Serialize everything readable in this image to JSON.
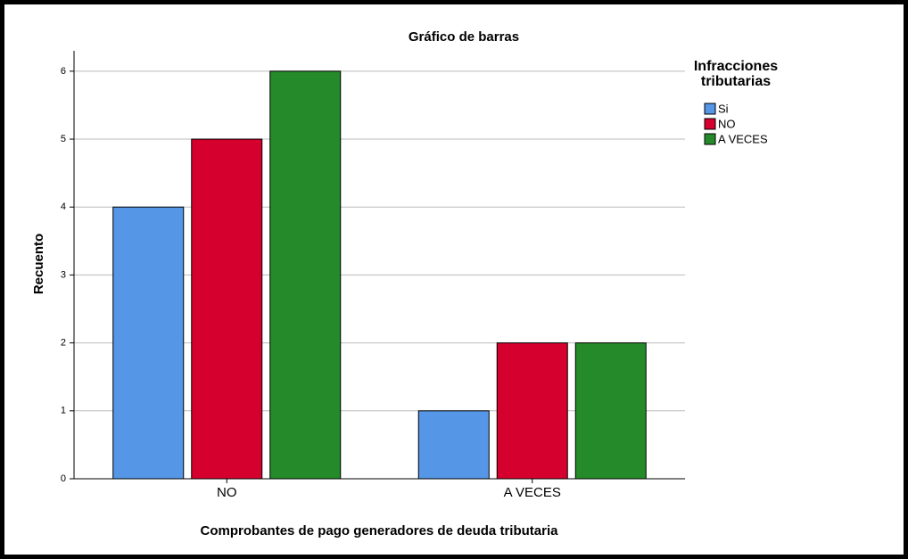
{
  "chart_data": {
    "type": "bar",
    "title": "Gráfico de barras",
    "x_label": "Comprobantes de pago generadores de deuda tributaria",
    "y_label": "Recuento",
    "legend_title": "Infracciones tributarias",
    "legend": "right",
    "categories": [
      "NO",
      "A VECES"
    ],
    "series": [
      {
        "name": "Si",
        "color": "#5596e6",
        "values": [
          4,
          1
        ]
      },
      {
        "name": "NO",
        "color": "#d6002f",
        "values": [
          5,
          2
        ]
      },
      {
        "name": "A VECES",
        "color": "#258a2a",
        "values": [
          6,
          2
        ]
      }
    ],
    "ylim": [
      0,
      6.3
    ],
    "yticks": [
      0,
      1,
      2,
      3,
      4,
      5,
      6
    ],
    "grid": true
  }
}
